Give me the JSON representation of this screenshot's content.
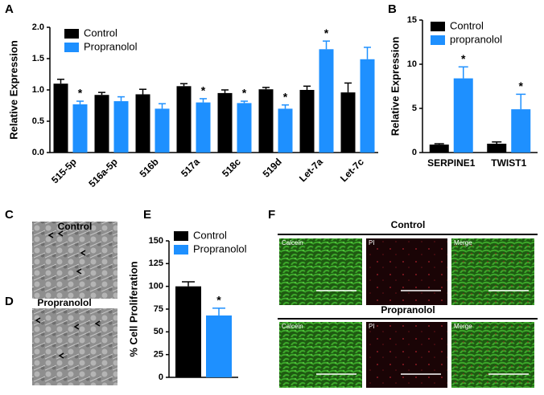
{
  "chart_data": [
    {
      "type": "bar",
      "label": "A",
      "ylabel": "Relative Expression",
      "categories": [
        "515-5p",
        "516a-5p",
        "516b",
        "517a",
        "518c",
        "519d",
        "Let-7a",
        "Let-7c"
      ],
      "series": [
        {
          "name": "Control",
          "color": "#000000",
          "values": [
            1.1,
            0.92,
            0.93,
            1.06,
            0.95,
            1.01,
            1.0,
            0.96
          ],
          "errors": [
            0.07,
            0.04,
            0.08,
            0.04,
            0.05,
            0.03,
            0.06,
            0.15
          ],
          "markers": [
            null,
            null,
            null,
            null,
            null,
            null,
            null,
            null
          ]
        },
        {
          "name": "Propranolol",
          "color": "#1e90ff",
          "values": [
            0.77,
            0.82,
            0.7,
            0.8,
            0.79,
            0.7,
            1.65,
            1.49
          ],
          "errors": [
            0.05,
            0.07,
            0.08,
            0.06,
            0.03,
            0.06,
            0.13,
            0.19
          ],
          "markers": [
            "*",
            null,
            null,
            "*",
            "*",
            "*",
            "*",
            null
          ]
        }
      ],
      "ylim": [
        0,
        2
      ],
      "yticks": [
        {
          "value": 0,
          "label": "0.0"
        },
        {
          "value": 0.5,
          "label": "0.5"
        },
        {
          "value": 1,
          "label": "1.0"
        },
        {
          "value": 1.5,
          "label": "1.5"
        },
        {
          "value": 2,
          "label": "2.0"
        }
      ],
      "legend": "upper left"
    },
    {
      "type": "bar",
      "label": "B",
      "ylabel": "Relative Expression",
      "categories": [
        "SERPINE1",
        "TWIST1"
      ],
      "series": [
        {
          "name": "Control",
          "color": "#000000",
          "values": [
            0.9,
            1.0
          ],
          "errors": [
            0.1,
            0.2
          ],
          "markers": [
            null,
            null
          ]
        },
        {
          "name": "propranolol",
          "color": "#1e90ff",
          "values": [
            8.4,
            4.9
          ],
          "errors": [
            1.3,
            1.7
          ],
          "markers": [
            "*",
            "*"
          ]
        }
      ],
      "ylim": [
        0,
        15
      ],
      "yticks": [
        0,
        5,
        10,
        15
      ],
      "legend": "upper left"
    },
    {
      "type": "bar",
      "label": "E",
      "ylabel": "% Cell Proliferation",
      "categories": [
        null
      ],
      "series": [
        {
          "name": "Control",
          "color": "#000000",
          "values": [
            100
          ],
          "errors": [
            5
          ],
          "markers": [
            null
          ]
        },
        {
          "name": "Propranolol",
          "color": "#1e90ff",
          "values": [
            68
          ],
          "errors": [
            8
          ],
          "markers": [
            "*"
          ]
        }
      ],
      "ylim": [
        0,
        150
      ],
      "yticks": [
        0,
        25,
        50,
        75,
        100,
        125,
        150
      ],
      "legend": "upper left"
    }
  ],
  "panels": {
    "C": {
      "label": "C",
      "caption": "Control"
    },
    "D": {
      "label": "D",
      "caption": "Propranolol"
    },
    "F": {
      "label": "F",
      "groups": [
        {
          "title": "Control",
          "images": [
            "Calcein",
            "PI",
            "Merge"
          ]
        },
        {
          "title": "Propranolol",
          "images": [
            "Calcein",
            "PI",
            "Merge"
          ]
        }
      ]
    }
  }
}
